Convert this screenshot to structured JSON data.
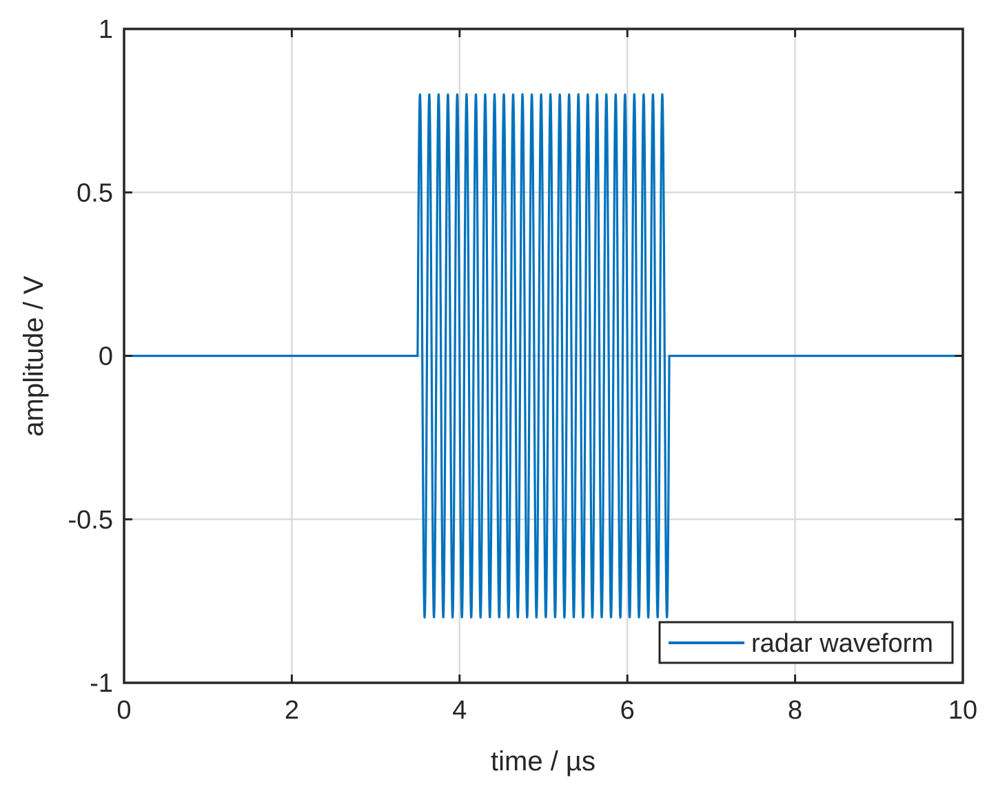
{
  "chart_data": {
    "type": "line",
    "xlabel": "time / µs",
    "ylabel": "amplitude / V",
    "xlim": [
      0,
      10
    ],
    "ylim": [
      -1,
      1
    ],
    "xticks": [
      0,
      2,
      4,
      6,
      8,
      10
    ],
    "yticks": [
      -1,
      -0.5,
      0,
      0.5,
      1
    ],
    "xtick_labels": [
      "0",
      "2",
      "4",
      "6",
      "8",
      "10"
    ],
    "ytick_labels": [
      "-1",
      "-0.5",
      "0",
      "0.5",
      "1"
    ],
    "grid": true,
    "legend_position": "bottom-right",
    "series": [
      {
        "name": "radar waveform",
        "color": "#0072BD",
        "pulse_start": 3.5,
        "pulse_end": 6.5,
        "amplitude": 0.8,
        "carrier_cycles": 27,
        "baseline": 0
      }
    ]
  }
}
